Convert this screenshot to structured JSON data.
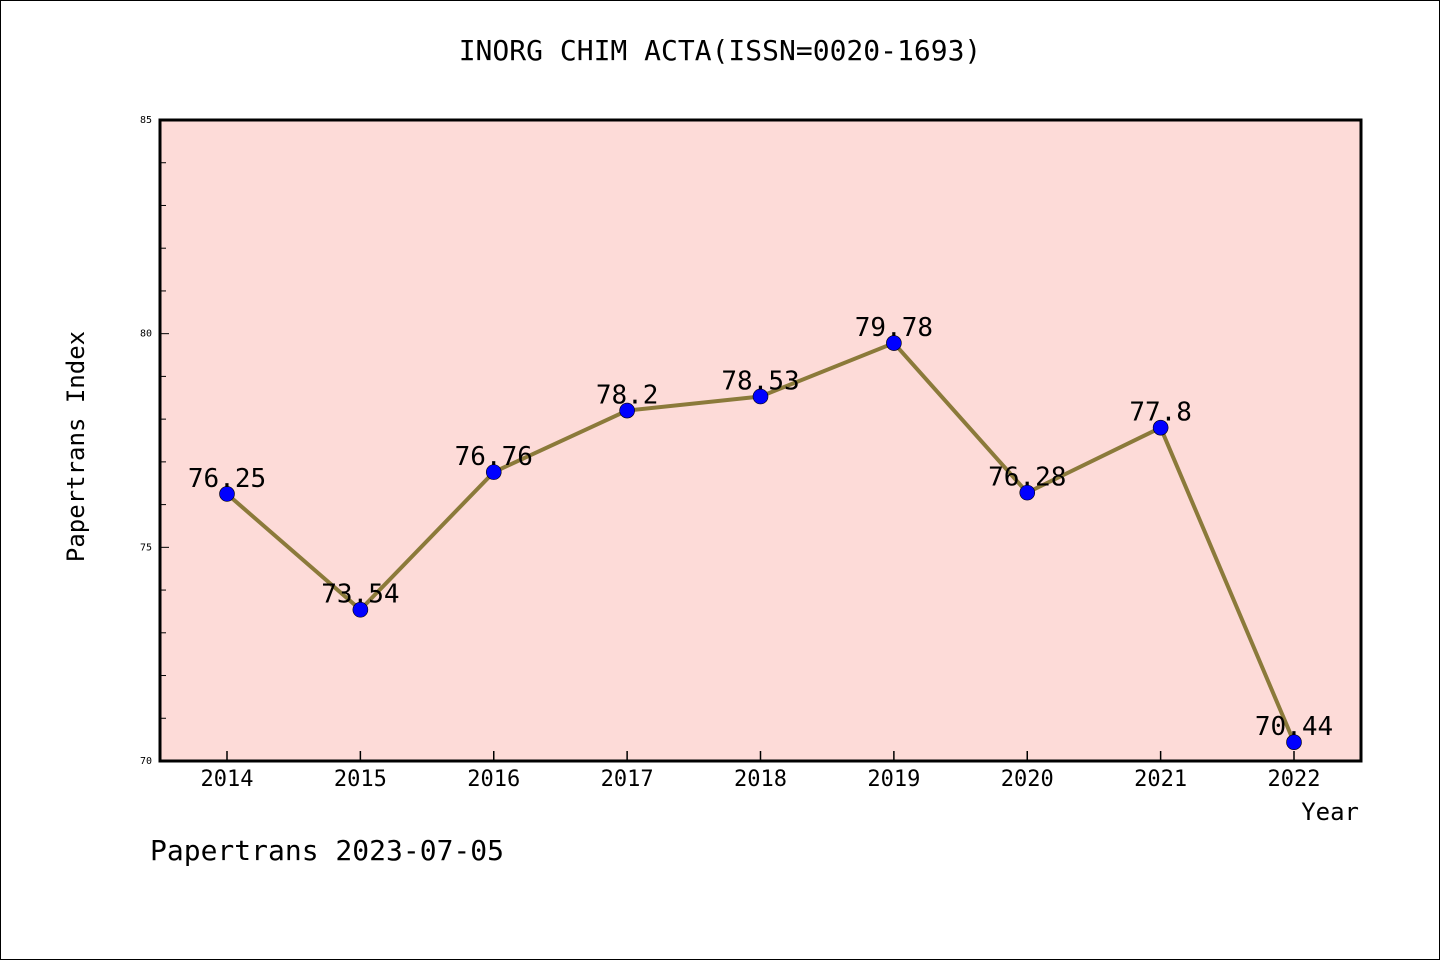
{
  "page": {
    "title": "INORG CHIM ACTA(ISSN=0020-1693)",
    "footer": "Papertrans 2023-07-05"
  },
  "chart_data": {
    "type": "line",
    "title": "INORG CHIM ACTA(ISSN=0020-1693)",
    "xlabel": "Year",
    "ylabel": "Papertrans Index",
    "categories": [
      "2014",
      "2015",
      "2016",
      "2017",
      "2018",
      "2019",
      "2020",
      "2021",
      "2022"
    ],
    "series": [
      {
        "values": [
          76.25,
          73.54,
          76.76,
          78.2,
          78.53,
          79.78,
          76.28,
          77.8,
          70.44
        ],
        "labels": [
          "76.25",
          "73.54",
          "76.76",
          "78.2",
          "78.53",
          "79.78",
          "76.28",
          "77.8",
          "70.44"
        ]
      }
    ],
    "ylim": [
      70,
      85
    ],
    "yticks": [
      70,
      75,
      80,
      85
    ],
    "grid": false,
    "colors": {
      "plot_background": "#fddbd8",
      "line": "#8b7a3a",
      "marker": "#0000ff"
    }
  }
}
